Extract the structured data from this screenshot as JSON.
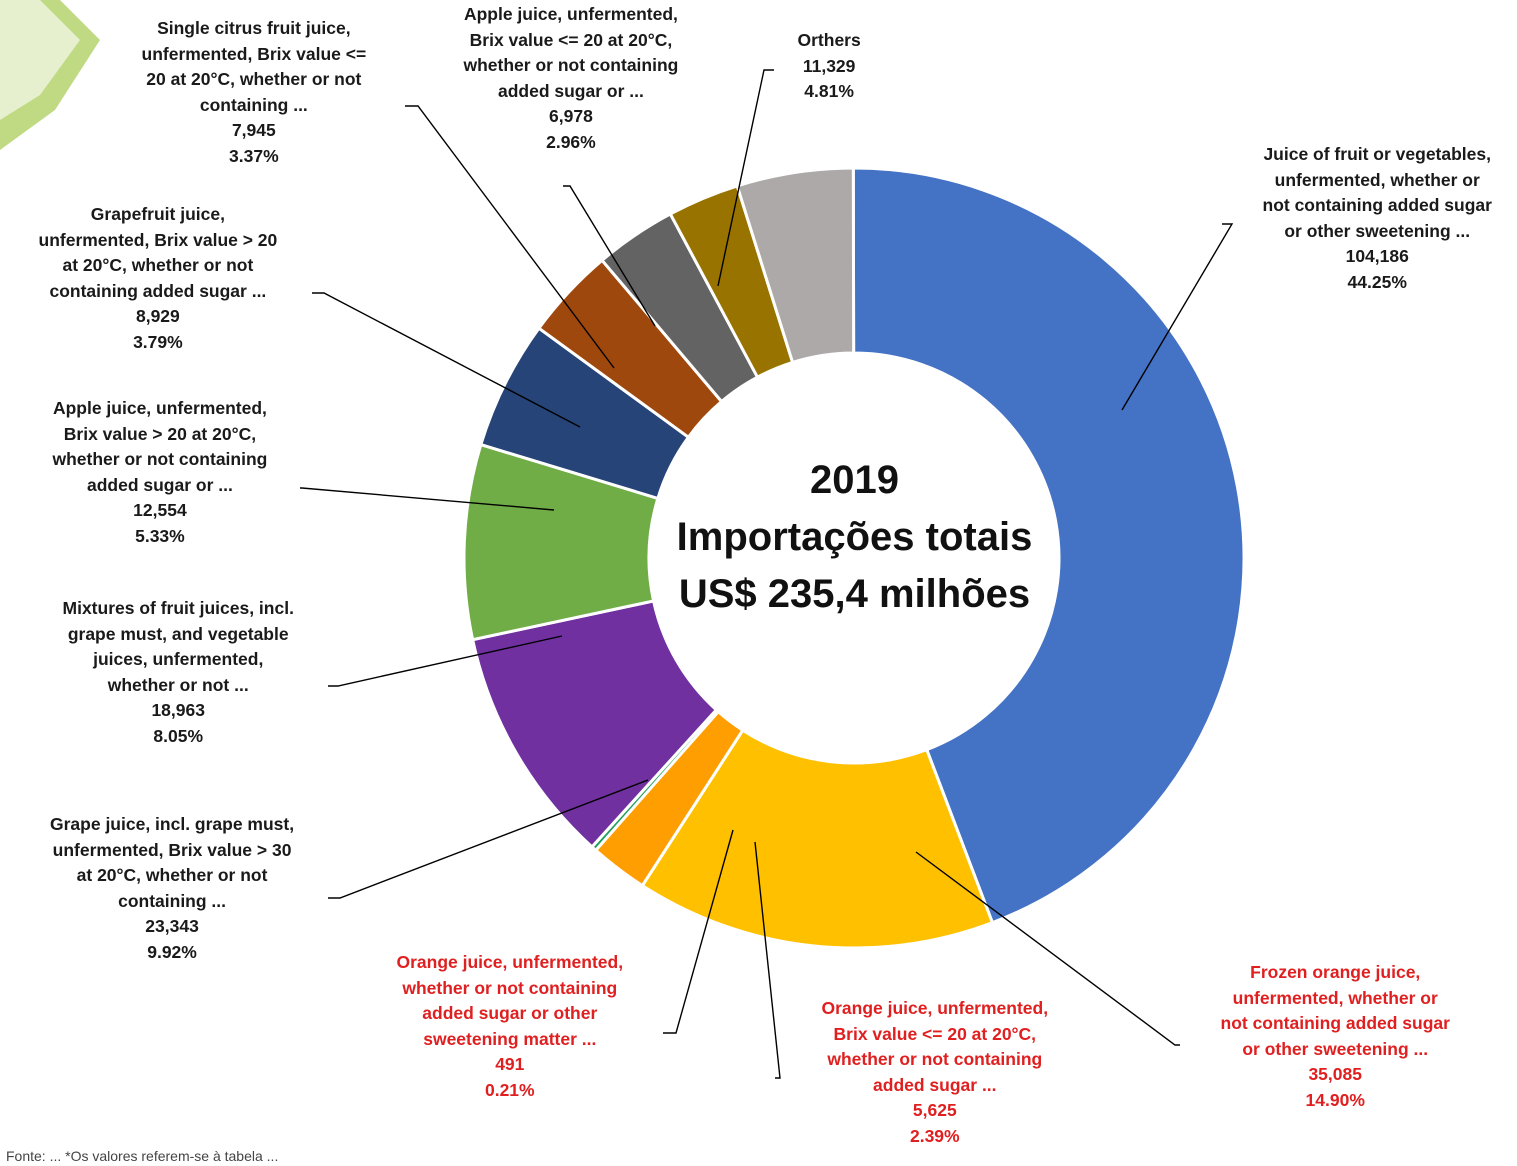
{
  "chart_data": {
    "type": "donut",
    "center": {
      "year": "2019",
      "line1": "Importações  totais",
      "line2": "US$ 235,4 milhões"
    },
    "slices": [
      {
        "label": [
          "Juice of fruit or vegetables,",
          "unfermented, whether or",
          "not containing added sugar",
          "or other sweetening ..."
        ],
        "value": 104186,
        "value_text": "104,186",
        "percent": 44.25,
        "percent_text": "44.25%",
        "color": "#4472C4",
        "label_color": "#1a1a1a"
      },
      {
        "label": [
          "Frozen orange juice,",
          "unfermented, whether or",
          "not containing added sugar",
          "or other sweetening ..."
        ],
        "value": 35085,
        "value_text": "35,085",
        "percent": 14.9,
        "percent_text": "14.90%",
        "color": "#FFC000",
        "label_color": "#e02020"
      },
      {
        "label": [
          "Orange juice, unfermented,",
          "Brix value <= 20 at 20°C,",
          "whether or not containing",
          "added sugar ..."
        ],
        "value": 5625,
        "value_text": "5,625",
        "percent": 2.39,
        "percent_text": "2.39%",
        "color": "#FF9E00",
        "label_color": "#e02020"
      },
      {
        "label": [
          "Orange juice, unfermented,",
          "whether or not containing",
          "added sugar or other",
          "sweetening matter ..."
        ],
        "value": 491,
        "value_text": "491",
        "percent": 0.21,
        "percent_text": "0.21%",
        "color": "#1E9E5A",
        "label_color": "#e02020"
      },
      {
        "label": [
          "Grape juice, incl. grape must,",
          "unfermented, Brix value > 30",
          "at 20°C, whether or not",
          "containing ..."
        ],
        "value": 23343,
        "value_text": "23,343",
        "percent": 9.92,
        "percent_text": "9.92%",
        "color": "#7030A0",
        "label_color": "#1a1a1a"
      },
      {
        "label": [
          "Mixtures of fruit juices, incl.",
          "grape must, and vegetable",
          "juices, unfermented,",
          "whether or not ..."
        ],
        "value": 18963,
        "value_text": "18,963",
        "percent": 8.05,
        "percent_text": "8.05%",
        "color": "#70AD47",
        "label_color": "#1a1a1a"
      },
      {
        "label": [
          "Apple juice, unfermented,",
          "Brix value > 20 at 20°C,",
          "whether or not containing",
          "added sugar or ..."
        ],
        "value": 12554,
        "value_text": "12,554",
        "percent": 5.33,
        "percent_text": "5.33%",
        "color": "#264478",
        "label_color": "#1a1a1a"
      },
      {
        "label": [
          "Grapefruit juice,",
          "unfermented, Brix value > 20",
          "at 20°C, whether or not",
          "containing added sugar ..."
        ],
        "value": 8929,
        "value_text": "8,929",
        "percent": 3.79,
        "percent_text": "3.79%",
        "color": "#9E480E",
        "label_color": "#1a1a1a"
      },
      {
        "label": [
          "Single citrus fruit juice,",
          "unfermented, Brix value <=",
          "20 at 20°C, whether or not",
          "containing ..."
        ],
        "value": 7945,
        "value_text": "7,945",
        "percent": 3.37,
        "percent_text": "3.37%",
        "color": "#636363",
        "label_color": "#1a1a1a"
      },
      {
        "label": [
          "Apple juice, unfermented,",
          "Brix value <= 20 at 20°C,",
          "whether or not containing",
          "added sugar or ..."
        ],
        "value": 6978,
        "value_text": "6,978",
        "percent": 2.96,
        "percent_text": "2.96%",
        "color": "#997300",
        "label_color": "#1a1a1a"
      },
      {
        "label": [
          "Orthers"
        ],
        "value": 11329,
        "value_text": "11,329",
        "percent": 4.81,
        "percent_text": "4.81%",
        "color": "#ADA9A8",
        "label_color": "#1a1a1a"
      }
    ]
  },
  "footnote": "Fonte: ... *Os valores referem-se à tabela ..."
}
